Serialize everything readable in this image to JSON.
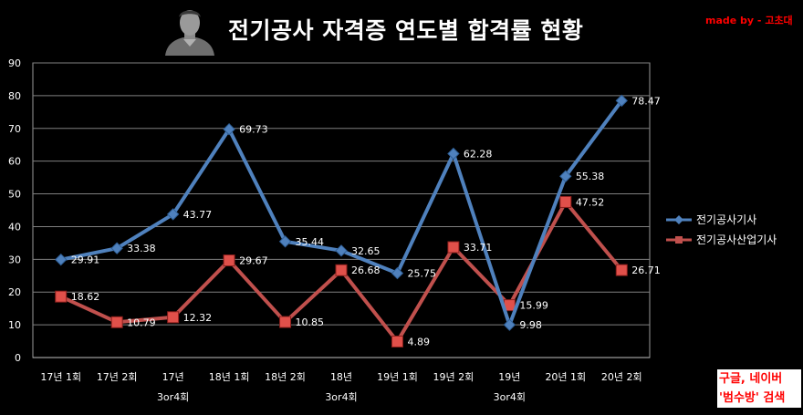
{
  "title": "전기공사 자격증 연도별 합격률 현황",
  "made_by": "made by - 고초대",
  "promo": {
    "line1": "구글, 네이버",
    "line2": "'범수방' 검색"
  },
  "chart_data": {
    "type": "line",
    "categories": [
      "17년 1회",
      "17년 2회",
      "17년 3or4회",
      "18년 1회",
      "18년 2회",
      "18년 3or4회",
      "19년 1회",
      "19년 2회",
      "19년 3or4회",
      "20년 1회",
      "20년 2회"
    ],
    "category_lines": [
      [
        "17년 1회"
      ],
      [
        "17년 2회"
      ],
      [
        "17년",
        "3or4회"
      ],
      [
        "18년 1회"
      ],
      [
        "18년 2회"
      ],
      [
        "18년",
        "3or4회"
      ],
      [
        "19년 1회"
      ],
      [
        "19년 2회"
      ],
      [
        "19년",
        "3or4회"
      ],
      [
        "20년 1회"
      ],
      [
        "20년 2회"
      ]
    ],
    "series": [
      {
        "name": "전기공사기사",
        "color": "#4f81bd",
        "marker": "diamond",
        "values": [
          29.91,
          33.38,
          43.77,
          69.73,
          35.44,
          32.65,
          25.75,
          62.28,
          9.98,
          55.38,
          78.47
        ],
        "labels": [
          "29.91",
          "33.38",
          "43.77",
          "69.73",
          "35.44",
          "32.65",
          "25.75",
          "62.28",
          "9.98",
          "55.38",
          "78.47"
        ]
      },
      {
        "name": "전기공사산업기사",
        "color": "#c0504d",
        "marker": "square",
        "values": [
          18.62,
          10.79,
          12.32,
          29.67,
          10.85,
          26.68,
          4.89,
          33.71,
          15.99,
          47.52,
          26.71
        ],
        "labels": [
          "18.62",
          "10.79",
          "12.32",
          "29.67",
          "10.85",
          "26.68",
          "4.89",
          "33.71",
          "15.99",
          "47.52",
          "26.71"
        ]
      }
    ],
    "yticks": [
      "0",
      "10",
      "20",
      "30",
      "40",
      "50",
      "60",
      "70",
      "80",
      "90"
    ],
    "ylim": [
      0,
      90
    ],
    "grid": true,
    "legend_position": "right"
  }
}
